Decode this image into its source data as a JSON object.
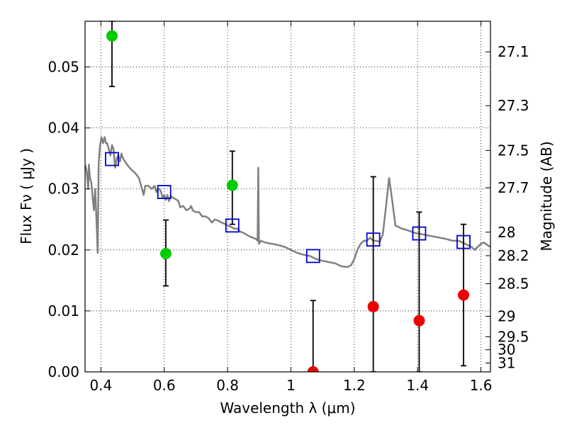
{
  "chart_data": {
    "type": "scatter",
    "title": "",
    "xlabel": "Wavelength  λ (μm)",
    "ylabel": "Flux  Fν  ( μJy )",
    "ylabel_right": "Magnitude (AB)",
    "xlim": [
      0.35,
      1.63
    ],
    "ylim": [
      0.0,
      0.0575
    ],
    "grid": true,
    "x_ticks": [
      {
        "value": 0.4,
        "label": "0.4"
      },
      {
        "value": 0.6,
        "label": "0.6"
      },
      {
        "value": 0.8,
        "label": "0.8"
      },
      {
        "value": 1.0,
        "label": "1"
      },
      {
        "value": 1.2,
        "label": "1.2"
      },
      {
        "value": 1.4,
        "label": "1.4"
      },
      {
        "value": 1.6,
        "label": "1.6"
      }
    ],
    "y_ticks": [
      {
        "value": 0.0,
        "label": "0.00"
      },
      {
        "value": 0.01,
        "label": "0.01"
      },
      {
        "value": 0.02,
        "label": "0.02"
      },
      {
        "value": 0.03,
        "label": "0.03"
      },
      {
        "value": 0.04,
        "label": "0.04"
      },
      {
        "value": 0.05,
        "label": "0.05"
      }
    ],
    "right_ticks": [
      {
        "mag": 27.1,
        "label": "27.1"
      },
      {
        "mag": 27.3,
        "label": "27.3"
      },
      {
        "mag": 27.5,
        "label": "27.5"
      },
      {
        "mag": 27.7,
        "label": "27.7"
      },
      {
        "mag": 28.0,
        "label": "28"
      },
      {
        "mag": 28.2,
        "label": "28.2"
      },
      {
        "mag": 28.5,
        "label": "28.5"
      },
      {
        "mag": 29.0,
        "label": "29"
      },
      {
        "mag": 29.5,
        "label": "29.5"
      },
      {
        "mag": 30.0,
        "label": "30"
      },
      {
        "mag": 31.0,
        "label": "31"
      }
    ],
    "series": [
      {
        "kind": "line",
        "color": "#808080",
        "points": [
          [
            0.35,
            0.034
          ],
          [
            0.355,
            0.033
          ],
          [
            0.36,
            0.03
          ],
          [
            0.362,
            0.034
          ],
          [
            0.365,
            0.032
          ],
          [
            0.37,
            0.031
          ],
          [
            0.375,
            0.028
          ],
          [
            0.378,
            0.0265
          ],
          [
            0.382,
            0.03
          ],
          [
            0.386,
            0.025
          ],
          [
            0.39,
            0.0195
          ],
          [
            0.393,
            0.034
          ],
          [
            0.397,
            0.037
          ],
          [
            0.402,
            0.0385
          ],
          [
            0.407,
            0.0375
          ],
          [
            0.412,
            0.0385
          ],
          [
            0.416,
            0.0375
          ],
          [
            0.42,
            0.0375
          ],
          [
            0.425,
            0.0365
          ],
          [
            0.43,
            0.0355
          ],
          [
            0.435,
            0.0372
          ],
          [
            0.44,
            0.0365
          ],
          [
            0.445,
            0.0335
          ],
          [
            0.45,
            0.035
          ],
          [
            0.455,
            0.0355
          ],
          [
            0.46,
            0.0345
          ],
          [
            0.465,
            0.0358
          ],
          [
            0.47,
            0.035
          ],
          [
            0.48,
            0.0342
          ],
          [
            0.49,
            0.0335
          ],
          [
            0.5,
            0.033
          ],
          [
            0.51,
            0.0325
          ],
          [
            0.52,
            0.0318
          ],
          [
            0.53,
            0.03
          ],
          [
            0.535,
            0.029
          ],
          [
            0.54,
            0.0305
          ],
          [
            0.55,
            0.0305
          ],
          [
            0.56,
            0.03
          ],
          [
            0.57,
            0.0305
          ],
          [
            0.575,
            0.0295
          ],
          [
            0.58,
            0.03
          ],
          [
            0.585,
            0.03
          ],
          [
            0.59,
            0.0295
          ],
          [
            0.595,
            0.0285
          ],
          [
            0.6,
            0.029
          ],
          [
            0.605,
            0.0282
          ],
          [
            0.61,
            0.029
          ],
          [
            0.615,
            0.028
          ],
          [
            0.62,
            0.0288
          ],
          [
            0.63,
            0.0285
          ],
          [
            0.64,
            0.0282
          ],
          [
            0.645,
            0.028
          ],
          [
            0.65,
            0.027
          ],
          [
            0.66,
            0.0272
          ],
          [
            0.67,
            0.0265
          ],
          [
            0.68,
            0.0268
          ],
          [
            0.685,
            0.0272
          ],
          [
            0.69,
            0.0265
          ],
          [
            0.7,
            0.0262
          ],
          [
            0.71,
            0.0262
          ],
          [
            0.72,
            0.0255
          ],
          [
            0.73,
            0.0255
          ],
          [
            0.74,
            0.0252
          ],
          [
            0.75,
            0.0245
          ],
          [
            0.76,
            0.025
          ],
          [
            0.77,
            0.0248
          ],
          [
            0.78,
            0.0245
          ],
          [
            0.79,
            0.0243
          ],
          [
            0.8,
            0.024
          ],
          [
            0.81,
            0.0238
          ],
          [
            0.82,
            0.0235
          ],
          [
            0.83,
            0.0235
          ],
          [
            0.84,
            0.023
          ],
          [
            0.85,
            0.0228
          ],
          [
            0.86,
            0.0225
          ],
          [
            0.87,
            0.0222
          ],
          [
            0.88,
            0.022
          ],
          [
            0.89,
            0.0218
          ],
          [
            0.895,
            0.0215
          ],
          [
            0.897,
            0.0335
          ],
          [
            0.899,
            0.021
          ],
          [
            0.905,
            0.0215
          ],
          [
            0.92,
            0.0212
          ],
          [
            0.94,
            0.021
          ],
          [
            0.96,
            0.0208
          ],
          [
            0.98,
            0.0205
          ],
          [
            1.0,
            0.02
          ],
          [
            1.02,
            0.0195
          ],
          [
            1.04,
            0.0192
          ],
          [
            1.06,
            0.019
          ],
          [
            1.08,
            0.0185
          ],
          [
            1.1,
            0.0182
          ],
          [
            1.12,
            0.018
          ],
          [
            1.14,
            0.0178
          ],
          [
            1.16,
            0.0173
          ],
          [
            1.18,
            0.0172
          ],
          [
            1.19,
            0.0175
          ],
          [
            1.2,
            0.0185
          ],
          [
            1.21,
            0.02
          ],
          [
            1.22,
            0.021
          ],
          [
            1.23,
            0.0215
          ],
          [
            1.24,
            0.0215
          ],
          [
            1.25,
            0.022
          ],
          [
            1.26,
            0.0215
          ],
          [
            1.27,
            0.0215
          ],
          [
            1.28,
            0.0213
          ],
          [
            1.29,
            0.0225
          ],
          [
            1.3,
            0.027
          ],
          [
            1.31,
            0.0318
          ],
          [
            1.32,
            0.028
          ],
          [
            1.33,
            0.024
          ],
          [
            1.35,
            0.0235
          ],
          [
            1.37,
            0.0232
          ],
          [
            1.39,
            0.0228
          ],
          [
            1.41,
            0.0226
          ],
          [
            1.43,
            0.0224
          ],
          [
            1.45,
            0.0222
          ],
          [
            1.47,
            0.022
          ],
          [
            1.49,
            0.0218
          ],
          [
            1.51,
            0.0215
          ],
          [
            1.53,
            0.0215
          ],
          [
            1.55,
            0.021
          ],
          [
            1.57,
            0.0205
          ],
          [
            1.58,
            0.02
          ],
          [
            1.59,
            0.0205
          ],
          [
            1.6,
            0.021
          ],
          [
            1.61,
            0.0212
          ],
          [
            1.62,
            0.0208
          ],
          [
            1.63,
            0.0205
          ]
        ]
      },
      {
        "kind": "squares",
        "color": "#0000cc",
        "points": [
          [
            0.435,
            0.0349
          ],
          [
            0.6,
            0.0295
          ],
          [
            0.815,
            0.024
          ],
          [
            1.07,
            0.019
          ],
          [
            1.26,
            0.0217
          ],
          [
            1.405,
            0.0227
          ],
          [
            1.545,
            0.0213
          ]
        ]
      },
      {
        "kind": "points_with_errors",
        "color": "#00cc00",
        "points": [
          {
            "x": 0.435,
            "y": 0.0551,
            "err_low": 0.0468,
            "err_high": 0.0575
          },
          {
            "x": 0.605,
            "y": 0.0194,
            "err_low": 0.0141,
            "err_high": 0.0249
          },
          {
            "x": 0.815,
            "y": 0.0306,
            "err_low": 0.0242,
            "err_high": 0.0362
          }
        ]
      },
      {
        "kind": "points_with_errors",
        "color": "#ee0000",
        "points": [
          {
            "x": 1.07,
            "y": 0.0,
            "err_low": 0.0,
            "err_high": 0.0117
          },
          {
            "x": 1.26,
            "y": 0.0107,
            "err_low": 0.0,
            "err_high": 0.032
          },
          {
            "x": 1.405,
            "y": 0.0084,
            "err_low": 0.0,
            "err_high": 0.0262
          },
          {
            "x": 1.545,
            "y": 0.0126,
            "err_low": 0.001,
            "err_high": 0.0242
          }
        ]
      }
    ]
  }
}
